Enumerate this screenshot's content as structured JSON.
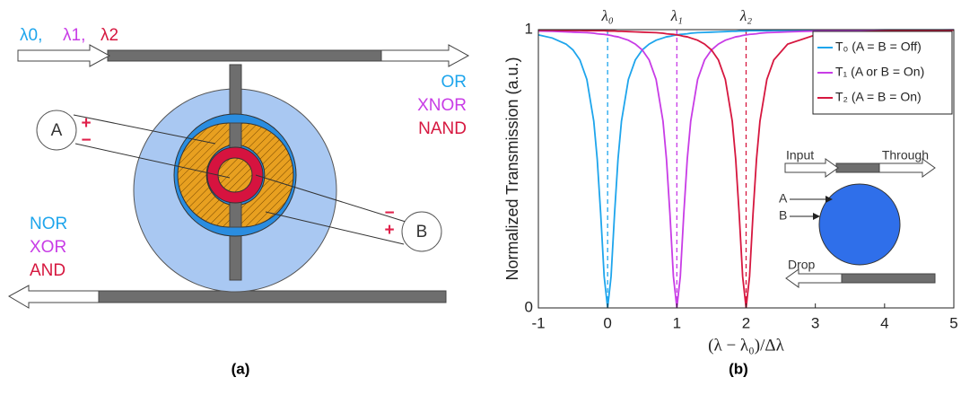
{
  "diagram": {
    "wavelengths": [
      "λ0,",
      "λ1,",
      "λ2"
    ],
    "top_outputs": [
      "OR",
      "XNOR",
      "NAND"
    ],
    "bottom_outputs": [
      "NOR",
      "XOR",
      "AND"
    ],
    "electrode_a": "A",
    "electrode_b": "B",
    "a_plus": "+",
    "a_minus": "−",
    "b_minus": "−",
    "b_plus": "+",
    "caption": "(a)"
  },
  "inset": {
    "input": "Input",
    "through": "Through",
    "a": "A",
    "b": "B",
    "drop": "Drop"
  },
  "caption_b": "(b)",
  "chart_data": {
    "type": "line",
    "xlabel": "(λ − λ₀)/Δλ",
    "ylabel": "Normalized Transmission (a.u.)",
    "xlim": [
      -1,
      5
    ],
    "ylim": [
      0,
      1
    ],
    "xticks": [
      -1,
      0,
      1,
      2,
      3,
      4,
      5
    ],
    "yticks": [
      0,
      1
    ],
    "legend": "top-right",
    "annotations": [
      {
        "text": "λ₀",
        "x": 0,
        "color": "#1ea5ec"
      },
      {
        "text": "λ₁",
        "x": 1,
        "color": "#c83ce6"
      },
      {
        "text": "λ₂",
        "x": 2,
        "color": "#d6173f"
      }
    ],
    "x": [
      -1,
      -0.8,
      -0.6,
      -0.5,
      -0.4,
      -0.3,
      -0.2,
      -0.15,
      -0.1,
      -0.05,
      0,
      0.05,
      0.1,
      0.15,
      0.2,
      0.3,
      0.4,
      0.5,
      0.6,
      0.7,
      0.8,
      0.85,
      0.9,
      0.95,
      1,
      1.05,
      1.1,
      1.15,
      1.2,
      1.3,
      1.4,
      1.5,
      1.6,
      1.7,
      1.8,
      1.85,
      1.9,
      1.95,
      2,
      2.05,
      2.1,
      2.15,
      2.2,
      2.3,
      2.4,
      2.6,
      3,
      3.5,
      4,
      4.5,
      5
    ],
    "series": [
      {
        "name": "T₀ (A = B = Off)",
        "color": "#1ea5ec",
        "values": [
          0.981,
          0.97,
          0.948,
          0.927,
          0.891,
          0.821,
          0.671,
          0.534,
          0.338,
          0.113,
          0,
          0.113,
          0.338,
          0.534,
          0.671,
          0.821,
          0.891,
          0.927,
          0.948,
          0.962,
          0.97,
          0.974,
          0.976,
          0.979,
          0.981,
          0.983,
          0.984,
          0.985,
          0.987,
          0.989,
          0.99,
          0.991,
          0.992,
          0.993,
          0.994,
          0.994,
          0.995,
          0.995,
          0.995,
          0.996,
          0.996,
          0.996,
          0.996,
          0.996,
          0.997,
          0.997,
          0.998,
          0.998,
          0.999,
          0.999,
          0.999
        ]
      },
      {
        "name": "T₁ (A or B = On)",
        "color": "#c83ce6",
        "values": [
          0.995,
          0.994,
          0.992,
          0.991,
          0.99,
          0.989,
          0.987,
          0.985,
          0.984,
          0.983,
          0.981,
          0.979,
          0.976,
          0.974,
          0.97,
          0.962,
          0.948,
          0.927,
          0.891,
          0.821,
          0.671,
          0.534,
          0.338,
          0.113,
          0,
          0.113,
          0.338,
          0.534,
          0.671,
          0.821,
          0.891,
          0.927,
          0.948,
          0.962,
          0.97,
          0.974,
          0.976,
          0.979,
          0.981,
          0.983,
          0.984,
          0.985,
          0.987,
          0.989,
          0.99,
          0.992,
          0.995,
          0.997,
          0.998,
          0.998,
          0.999
        ]
      },
      {
        "name": "T₂ (A = B = On)",
        "color": "#d6173f",
        "values": [
          0.998,
          0.998,
          0.997,
          0.997,
          0.997,
          0.996,
          0.996,
          0.996,
          0.996,
          0.996,
          0.995,
          0.995,
          0.995,
          0.994,
          0.994,
          0.993,
          0.992,
          0.991,
          0.99,
          0.989,
          0.987,
          0.985,
          0.984,
          0.983,
          0.981,
          0.979,
          0.976,
          0.974,
          0.97,
          0.962,
          0.948,
          0.927,
          0.891,
          0.821,
          0.671,
          0.534,
          0.338,
          0.113,
          0,
          0.113,
          0.338,
          0.534,
          0.671,
          0.821,
          0.891,
          0.948,
          0.981,
          0.991,
          0.995,
          0.997,
          0.998
        ]
      }
    ]
  }
}
